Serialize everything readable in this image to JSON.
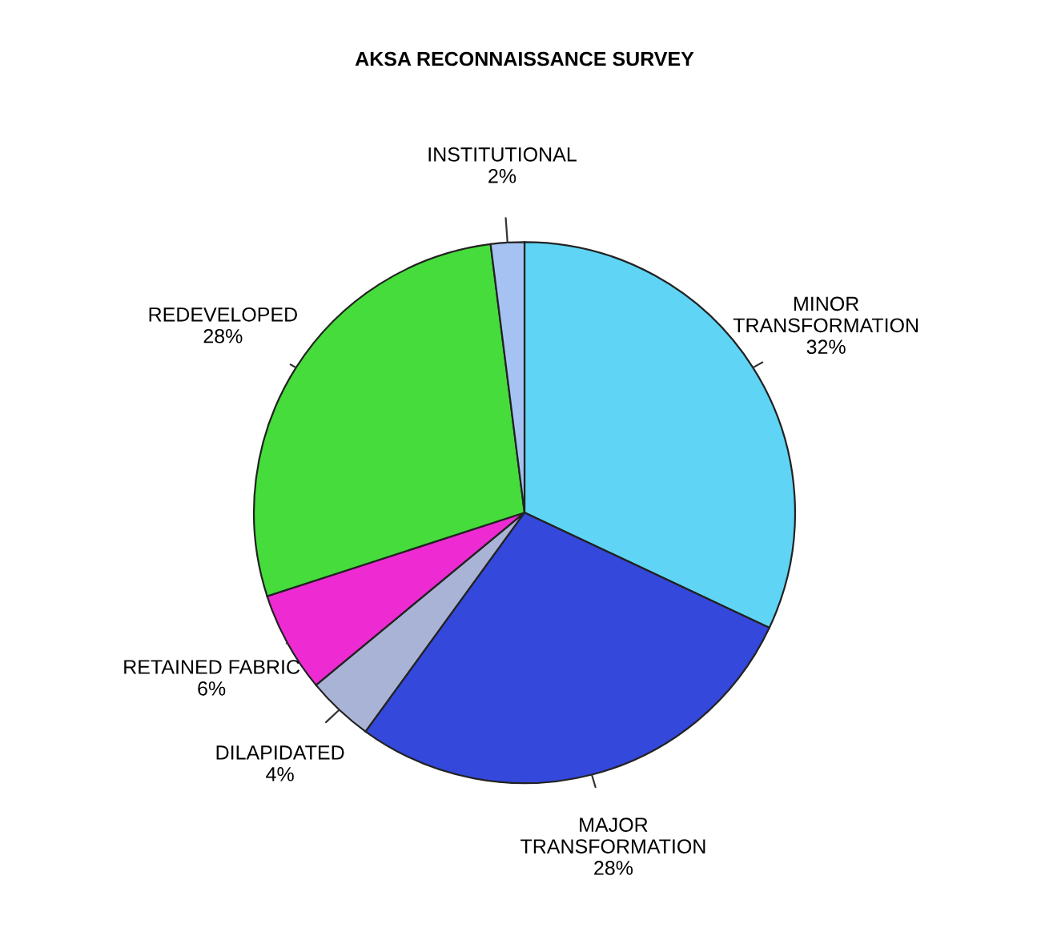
{
  "chart_data": {
    "type": "pie",
    "title": "AKSA RECONNAISSANCE SURVEY",
    "categories": [
      "MINOR\nTRANSFORMATION",
      "MAJOR\nTRANSFORMATION",
      "DILAPIDATED",
      "RETAINED FABRIC",
      "REDEVELOPED",
      "INSTITUTIONAL"
    ],
    "values": [
      32,
      28,
      4,
      6,
      28,
      2
    ],
    "value_labels": [
      "32%",
      "28%",
      "4%",
      "6%",
      "28%",
      "2%"
    ],
    "colors": [
      "#5fd4f4",
      "#3448dc",
      "#a9b3d6",
      "#ee2ad2",
      "#46dc3c",
      "#a6c2f2"
    ],
    "legend": false
  }
}
